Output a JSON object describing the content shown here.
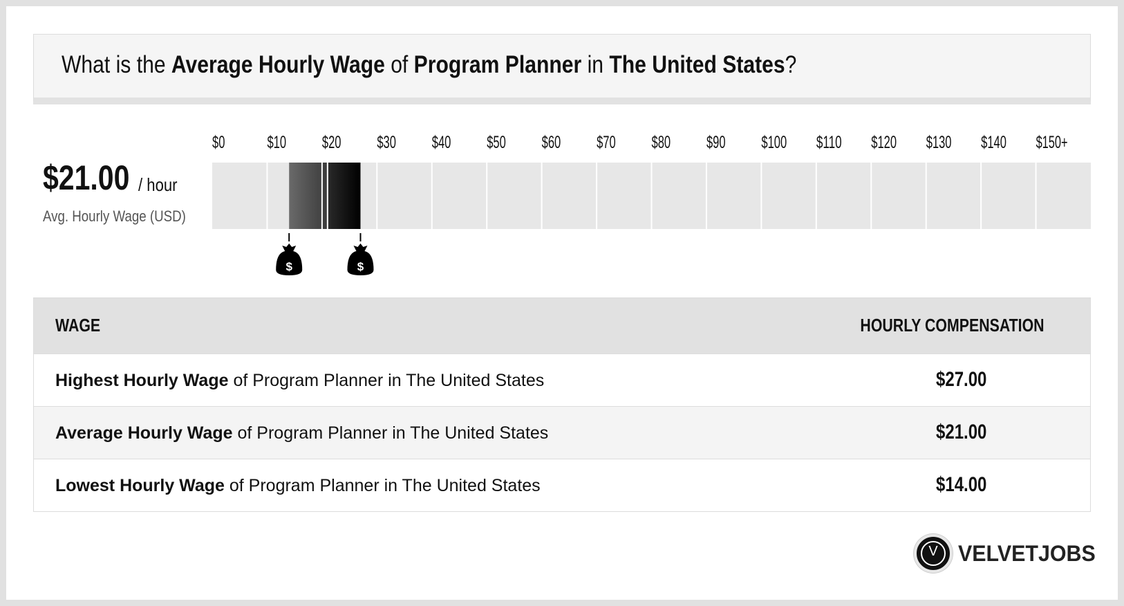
{
  "header": {
    "p1": "What is the ",
    "b1": "Average Hourly Wage",
    "p2": " of ",
    "b2": "Program Planner",
    "p3": " in ",
    "b3": "The United States",
    "p4": "?"
  },
  "summary": {
    "value": "$21.00",
    "unit": "/ hour",
    "label": "Avg. Hourly Wage (USD)"
  },
  "chart_data": {
    "type": "bar",
    "categories": [
      "$0",
      "$10",
      "$20",
      "$30",
      "$40",
      "$50",
      "$60",
      "$70",
      "$80",
      "$90",
      "$100",
      "$110",
      "$120",
      "$130",
      "$140",
      "$150+"
    ],
    "x_range": [
      0,
      150
    ],
    "range_low": 14,
    "range_high": 27,
    "average": 21,
    "markers": [
      {
        "value": 14,
        "icon": "money-bag-icon",
        "symbol": "$"
      },
      {
        "value": 27,
        "icon": "money-bag-icon",
        "symbol": "$"
      }
    ],
    "colors": {
      "track": "#e7e7e7",
      "low_fill": "#555555",
      "high_fill": "#000000"
    }
  },
  "table": {
    "col_wage": "WAGE",
    "col_comp": "HOURLY COMPENSATION",
    "rows": [
      {
        "bold": "Highest Hourly Wage",
        "rest": " of Program Planner in The United States",
        "value": "$27.00"
      },
      {
        "bold": "Average Hourly Wage",
        "rest": " of Program Planner in The United States",
        "value": "$21.00"
      },
      {
        "bold": "Lowest Hourly Wage",
        "rest": " of Program Planner in The United States",
        "value": "$14.00"
      }
    ]
  },
  "logo": {
    "mark": "V",
    "text": "VELVETJOBS",
    "icon": "velvetjobs-logo-icon"
  }
}
